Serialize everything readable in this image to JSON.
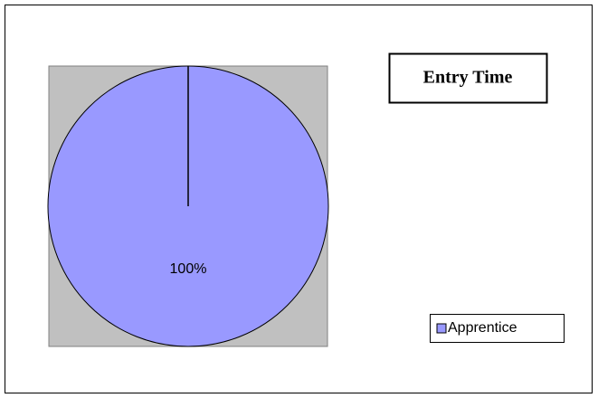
{
  "chart_data": {
    "type": "pie",
    "title": "Entry Time",
    "categories": [
      "Apprentice"
    ],
    "values": [
      100
    ],
    "value_labels": [
      "100%"
    ],
    "colors": [
      "#9999ff"
    ],
    "legend": "lower right"
  }
}
